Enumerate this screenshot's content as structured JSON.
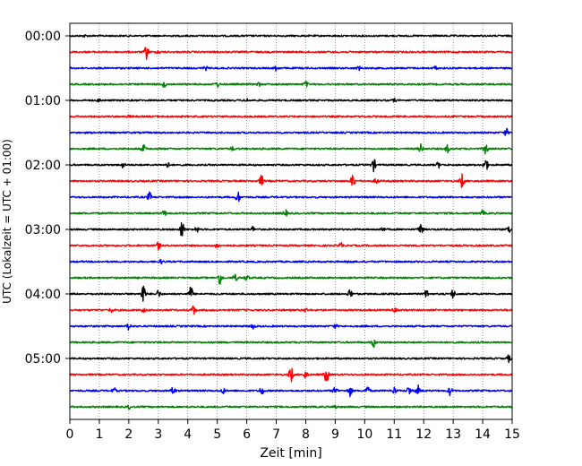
{
  "chart_data": {
    "type": "line",
    "title": "",
    "xlabel": "Zeit  [min]",
    "ylabel": "UTC (Lokalzeit = UTC + 01:00)",
    "xlim": [
      0,
      15
    ],
    "x_ticks": [
      0,
      1,
      2,
      3,
      4,
      5,
      6,
      7,
      8,
      9,
      10,
      11,
      12,
      13,
      14,
      15
    ],
    "grid": "vertical-dotted",
    "trace_interval_minutes": 15,
    "y_tick_labels": [
      "00:00",
      "01:00",
      "02:00",
      "03:00",
      "04:00",
      "05:00"
    ],
    "series": [
      {
        "start": "00:00",
        "color": "#000000",
        "events": [
          {
            "t": 0.5,
            "a": 1
          }
        ]
      },
      {
        "start": "00:15",
        "color": "#ff0000",
        "events": [
          {
            "t": 2.6,
            "a": 8
          },
          {
            "t": 3.0,
            "a": 2
          }
        ]
      },
      {
        "start": "00:30",
        "color": "#0000ff",
        "events": [
          {
            "t": 4.6,
            "a": 2
          },
          {
            "t": 7.0,
            "a": 3
          },
          {
            "t": 9.8,
            "a": 2
          },
          {
            "t": 12.4,
            "a": 2
          }
        ]
      },
      {
        "start": "00:45",
        "color": "#008000",
        "events": [
          {
            "t": 3.2,
            "a": 3
          },
          {
            "t": 5.0,
            "a": 3
          },
          {
            "t": 6.4,
            "a": 2
          },
          {
            "t": 8.0,
            "a": 3
          }
        ]
      },
      {
        "start": "01:00",
        "color": "#000000",
        "events": [
          {
            "t": 1.0,
            "a": 1.5
          },
          {
            "t": 6.0,
            "a": 1.5
          },
          {
            "t": 11.0,
            "a": 1.5
          }
        ]
      },
      {
        "start": "01:15",
        "color": "#ff0000",
        "events": [
          {
            "t": 2.0,
            "a": 1
          }
        ]
      },
      {
        "start": "01:30",
        "color": "#0000ff",
        "events": [
          {
            "t": 14.8,
            "a": 4
          }
        ]
      },
      {
        "start": "01:45",
        "color": "#008000",
        "events": [
          {
            "t": 2.5,
            "a": 4
          },
          {
            "t": 5.5,
            "a": 2
          },
          {
            "t": 11.9,
            "a": 5
          },
          {
            "t": 12.8,
            "a": 4
          },
          {
            "t": 14.1,
            "a": 7
          }
        ]
      },
      {
        "start": "02:00",
        "color": "#000000",
        "events": [
          {
            "t": 1.8,
            "a": 3
          },
          {
            "t": 3.3,
            "a": 3
          },
          {
            "t": 10.3,
            "a": 7
          },
          {
            "t": 12.5,
            "a": 3
          },
          {
            "t": 14.1,
            "a": 8
          }
        ]
      },
      {
        "start": "02:15",
        "color": "#ff0000",
        "events": [
          {
            "t": 6.5,
            "a": 6
          },
          {
            "t": 9.6,
            "a": 8
          },
          {
            "t": 10.4,
            "a": 3
          },
          {
            "t": 13.3,
            "a": 8
          }
        ]
      },
      {
        "start": "02:30",
        "color": "#0000ff",
        "events": [
          {
            "t": 2.7,
            "a": 5
          },
          {
            "t": 5.7,
            "a": 6
          }
        ]
      },
      {
        "start": "02:45",
        "color": "#008000",
        "events": [
          {
            "t": 3.2,
            "a": 3
          },
          {
            "t": 7.3,
            "a": 4
          },
          {
            "t": 14.0,
            "a": 3
          }
        ]
      },
      {
        "start": "03:00",
        "color": "#000000",
        "events": [
          {
            "t": 3.8,
            "a": 10
          },
          {
            "t": 4.3,
            "a": 3
          },
          {
            "t": 6.2,
            "a": 3
          },
          {
            "t": 10.6,
            "a": 3
          },
          {
            "t": 11.9,
            "a": 8
          },
          {
            "t": 14.9,
            "a": 4
          }
        ]
      },
      {
        "start": "03:15",
        "color": "#ff0000",
        "events": [
          {
            "t": 3.0,
            "a": 4
          },
          {
            "t": 5.0,
            "a": 3
          },
          {
            "t": 9.2,
            "a": 3
          }
        ]
      },
      {
        "start": "03:30",
        "color": "#0000ff",
        "events": [
          {
            "t": 3.1,
            "a": 2
          },
          {
            "t": 9.5,
            "a": 2
          }
        ]
      },
      {
        "start": "03:45",
        "color": "#008000",
        "events": [
          {
            "t": 5.1,
            "a": 8
          },
          {
            "t": 5.6,
            "a": 4
          },
          {
            "t": 6.0,
            "a": 3
          }
        ]
      },
      {
        "start": "04:00",
        "color": "#000000",
        "events": [
          {
            "t": 2.5,
            "a": 12
          },
          {
            "t": 4.1,
            "a": 8
          },
          {
            "t": 3.0,
            "a": 4
          },
          {
            "t": 9.5,
            "a": 5
          },
          {
            "t": 12.1,
            "a": 5
          },
          {
            "t": 13.0,
            "a": 5
          }
        ]
      },
      {
        "start": "04:15",
        "color": "#ff0000",
        "events": [
          {
            "t": 4.2,
            "a": 6
          },
          {
            "t": 1.4,
            "a": 2
          },
          {
            "t": 2.5,
            "a": 2
          },
          {
            "t": 8.0,
            "a": 2
          },
          {
            "t": 11.0,
            "a": 2
          }
        ]
      },
      {
        "start": "04:30",
        "color": "#0000ff",
        "events": [
          {
            "t": 2.0,
            "a": 4
          },
          {
            "t": 6.2,
            "a": 3
          },
          {
            "t": 9.0,
            "a": 2
          }
        ]
      },
      {
        "start": "04:45",
        "color": "#008000",
        "events": [
          {
            "t": 10.3,
            "a": 5
          }
        ]
      },
      {
        "start": "05:00",
        "color": "#000000",
        "events": [
          {
            "t": 14.9,
            "a": 4
          }
        ]
      },
      {
        "start": "05:15",
        "color": "#ff0000",
        "events": [
          {
            "t": 7.5,
            "a": 9
          },
          {
            "t": 8.0,
            "a": 4
          },
          {
            "t": 8.7,
            "a": 10
          }
        ]
      },
      {
        "start": "05:30",
        "color": "#0000ff",
        "events": [
          {
            "t": 1.5,
            "a": 3
          },
          {
            "t": 3.5,
            "a": 5
          },
          {
            "t": 5.2,
            "a": 3
          },
          {
            "t": 6.5,
            "a": 5
          },
          {
            "t": 9.0,
            "a": 4
          },
          {
            "t": 9.5,
            "a": 6
          },
          {
            "t": 10.1,
            "a": 5
          },
          {
            "t": 11.0,
            "a": 4
          },
          {
            "t": 11.5,
            "a": 5
          },
          {
            "t": 11.8,
            "a": 6
          },
          {
            "t": 12.9,
            "a": 5
          }
        ]
      },
      {
        "start": "05:45",
        "color": "#008000",
        "events": [
          {
            "t": 2.0,
            "a": 2
          },
          {
            "t": 9.0,
            "a": 2
          }
        ]
      }
    ]
  }
}
